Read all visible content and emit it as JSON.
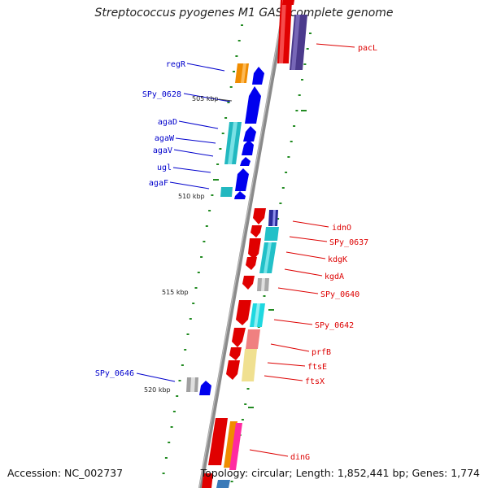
{
  "title": "Streptococcus pyogenes M1 GAS, complete genome",
  "footer": {
    "accession": "Accession: NC_002737",
    "topology": "Topology: circular; Length: 1,852,441 bp; Genes: 1,774"
  },
  "colors": {
    "forward": "#ee0000",
    "reverse": "#0000ee",
    "backbone": "#888888",
    "tick": "#228b22"
  },
  "scale_ticks": [
    "505 kbp",
    "510 kbp",
    "515 kbp",
    "520 kbp"
  ],
  "genes_reverse": [
    "regR",
    "SPy_0628",
    "agaD",
    "agaW",
    "agaV",
    "ugl",
    "agaF",
    "SPy_0646"
  ],
  "genes_forward": [
    "pacL",
    "idnO",
    "SPy_0637",
    "kdgK",
    "kgdA",
    "SPy_0640",
    "SPy_0642",
    "prfB",
    "ftsE",
    "ftsX",
    "dinG"
  ]
}
